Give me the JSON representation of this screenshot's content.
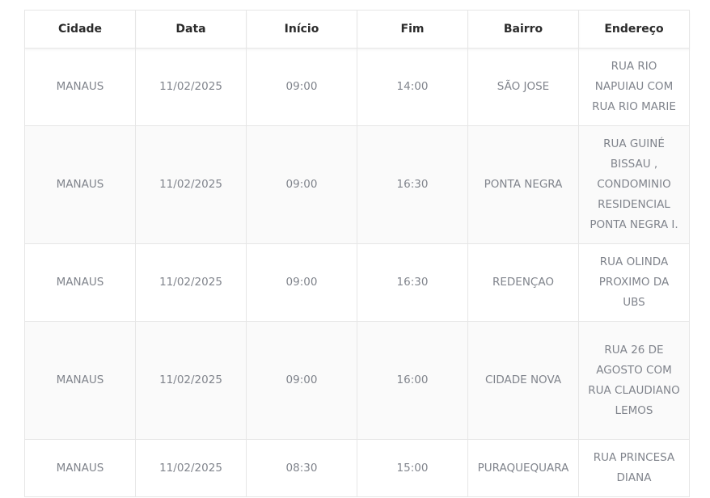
{
  "table": {
    "headers": [
      "Cidade",
      "Data",
      "Início",
      "Fim",
      "Bairro",
      "Endereço"
    ],
    "rows": [
      [
        "MANAUS",
        "11/02/2025",
        "09:00",
        "14:00",
        "SÃO JOSE",
        "RUA RIO NAPUIAU COM RUA RIO MARIE"
      ],
      [
        "MANAUS",
        "11/02/2025",
        "09:00",
        "16:30",
        "PONTA NEGRA",
        "RUA GUINÉ BISSAU , CONDOMINIO RESIDENCIAL PONTA NEGRA I."
      ],
      [
        "MANAUS",
        "11/02/2025",
        "09:00",
        "16:30",
        "REDENÇAO",
        "RUA OLINDA PROXIMO DA UBS"
      ],
      [
        "MANAUS",
        "11/02/2025",
        "09:00",
        "16:00",
        "CIDADE NOVA",
        "RUA 26 DE AGOSTO COM RUA CLAUDIANO LEMOS"
      ],
      [
        "MANAUS",
        "11/02/2025",
        "08:30",
        "15:00",
        "PURAQUEQUARA",
        "RUA PRINCESA DIANA"
      ]
    ]
  }
}
